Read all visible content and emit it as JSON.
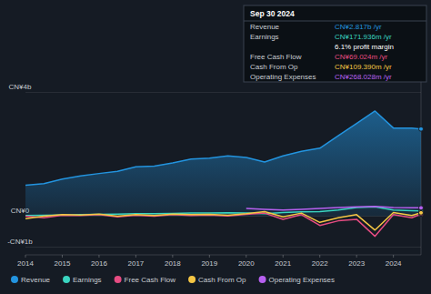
{
  "chart_data": {
    "type": "line",
    "x": [
      2014,
      2014.5,
      2015,
      2015.5,
      2016,
      2016.5,
      2017,
      2017.5,
      2018,
      2018.5,
      2019,
      2019.5,
      2020,
      2020.5,
      2021,
      2021.5,
      2022,
      2022.5,
      2023,
      2023.5,
      2024,
      2024.5,
      2024.75
    ],
    "xlim": [
      2014,
      2024.75
    ],
    "xticks": [
      2014,
      2015,
      2016,
      2017,
      2018,
      2019,
      2020,
      2021,
      2022,
      2023,
      2024
    ],
    "ylim": [
      -1.25,
      4.4
    ],
    "yticks": [
      {
        "value": -1,
        "label": "-CN¥1b"
      },
      {
        "value": 0,
        "label": "CN¥0"
      },
      {
        "value": 4,
        "label": "CN¥4b"
      }
    ],
    "grid": true,
    "legend": "bottom",
    "series": [
      {
        "name": "Revenue",
        "type": "area",
        "color": "#2394df",
        "values": [
          1.0,
          1.05,
          1.2,
          1.3,
          1.38,
          1.45,
          1.6,
          1.62,
          1.72,
          1.85,
          1.88,
          1.95,
          1.9,
          1.75,
          1.95,
          2.1,
          2.2,
          2.6,
          3.0,
          3.4,
          2.85,
          2.85,
          2.82
        ]
      },
      {
        "name": "Earnings",
        "color": "#3ad4c0",
        "values": [
          0.02,
          0.03,
          0.04,
          0.05,
          0.06,
          0.07,
          0.08,
          0.08,
          0.09,
          0.1,
          0.1,
          0.11,
          0.1,
          0.08,
          0.12,
          0.14,
          0.15,
          0.2,
          0.28,
          0.3,
          0.2,
          0.18,
          0.17
        ]
      },
      {
        "name": "Free Cash Flow",
        "color": "#e64c82",
        "values": [
          0.0,
          -0.05,
          0.03,
          0.02,
          0.05,
          -0.02,
          0.03,
          0.0,
          0.05,
          0.02,
          0.04,
          0.01,
          0.06,
          0.1,
          -0.1,
          0.05,
          -0.3,
          -0.15,
          -0.1,
          -0.65,
          0.05,
          -0.05,
          0.07
        ]
      },
      {
        "name": "Cash From Op",
        "color": "#f5c644",
        "values": [
          -0.08,
          0.0,
          0.05,
          0.04,
          0.07,
          0.0,
          0.05,
          0.02,
          0.07,
          0.05,
          0.06,
          0.03,
          0.08,
          0.15,
          -0.02,
          0.1,
          -0.2,
          -0.05,
          0.05,
          -0.45,
          0.12,
          0.02,
          0.11
        ]
      },
      {
        "name": "Operating Expenses",
        "color": "#b760f0",
        "values": [
          null,
          null,
          null,
          null,
          null,
          null,
          null,
          null,
          null,
          null,
          null,
          null,
          0.25,
          0.22,
          0.2,
          0.22,
          0.25,
          0.28,
          0.3,
          0.32,
          0.28,
          0.27,
          0.27
        ]
      }
    ],
    "annotations": {
      "date": "Sep 30 2024",
      "rows": [
        {
          "label": "Revenue",
          "value": "CN¥2.817b /yr"
        },
        {
          "label": "Earnings",
          "value": "CN¥171.936m /yr"
        },
        {
          "value": "6.1% profit margin"
        },
        {
          "label": "Free Cash Flow",
          "value": "CN¥69.024m /yr"
        },
        {
          "label": "Cash From Op",
          "value": "CN¥109.390m /yr"
        },
        {
          "label": "Operating Expenses",
          "value": "CN¥268.028m /yr"
        }
      ]
    }
  }
}
